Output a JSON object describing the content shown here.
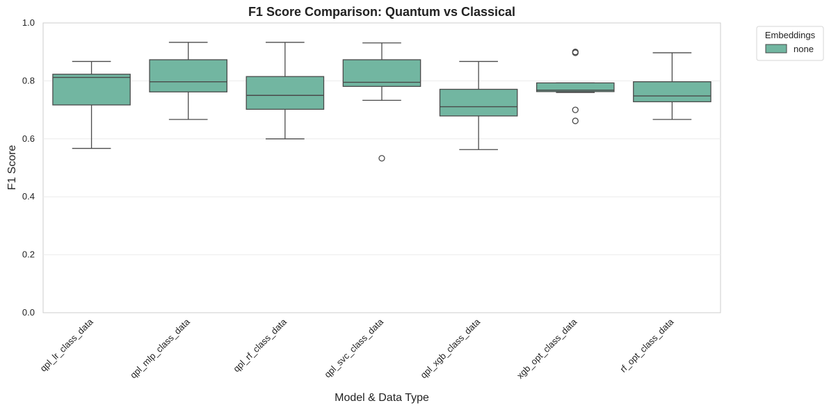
{
  "chart_data": {
    "type": "box",
    "title": "F1 Score Comparison: Quantum vs Classical",
    "xlabel": "Model & Data Type",
    "ylabel": "F1 Score",
    "ylim": [
      0.0,
      1.0
    ],
    "yticks": [
      "0.0",
      "0.2",
      "0.4",
      "0.6",
      "0.8",
      "1.0"
    ],
    "grid": true,
    "legend": {
      "title": "Embeddings",
      "placement": "outside-top-right",
      "entries": [
        {
          "label": "none",
          "color": "#72b6a1"
        }
      ]
    },
    "box_color": "#72b6a1",
    "categories": [
      "qpl_lr_class_data",
      "qpl_mlp_class_data",
      "qpl_rf_class_data",
      "qpl_svc_class_data",
      "qpl_xgb_class_data",
      "xgb_opt_class_data",
      "rf_opt_class_data"
    ],
    "series": [
      {
        "name": "none",
        "boxes": [
          {
            "whisker_low": 0.567,
            "q1": 0.717,
            "median": 0.812,
            "q3": 0.823,
            "whisker_high": 0.867,
            "outliers": []
          },
          {
            "whisker_low": 0.667,
            "q1": 0.762,
            "median": 0.797,
            "q3": 0.873,
            "whisker_high": 0.933,
            "outliers": []
          },
          {
            "whisker_low": 0.6,
            "q1": 0.702,
            "median": 0.75,
            "q3": 0.815,
            "whisker_high": 0.933,
            "outliers": []
          },
          {
            "whisker_low": 0.733,
            "q1": 0.781,
            "median": 0.795,
            "q3": 0.873,
            "whisker_high": 0.931,
            "outliers": [
              0.533
            ]
          },
          {
            "whisker_low": 0.563,
            "q1": 0.679,
            "median": 0.711,
            "q3": 0.771,
            "whisker_high": 0.867,
            "outliers": []
          },
          {
            "whisker_low": 0.76,
            "q1": 0.763,
            "median": 0.768,
            "q3": 0.793,
            "whisker_high": 0.793,
            "outliers": [
              0.9,
              0.897,
              0.7,
              0.662
            ]
          },
          {
            "whisker_low": 0.667,
            "q1": 0.728,
            "median": 0.748,
            "q3": 0.797,
            "whisker_high": 0.897,
            "outliers": []
          }
        ]
      }
    ]
  }
}
